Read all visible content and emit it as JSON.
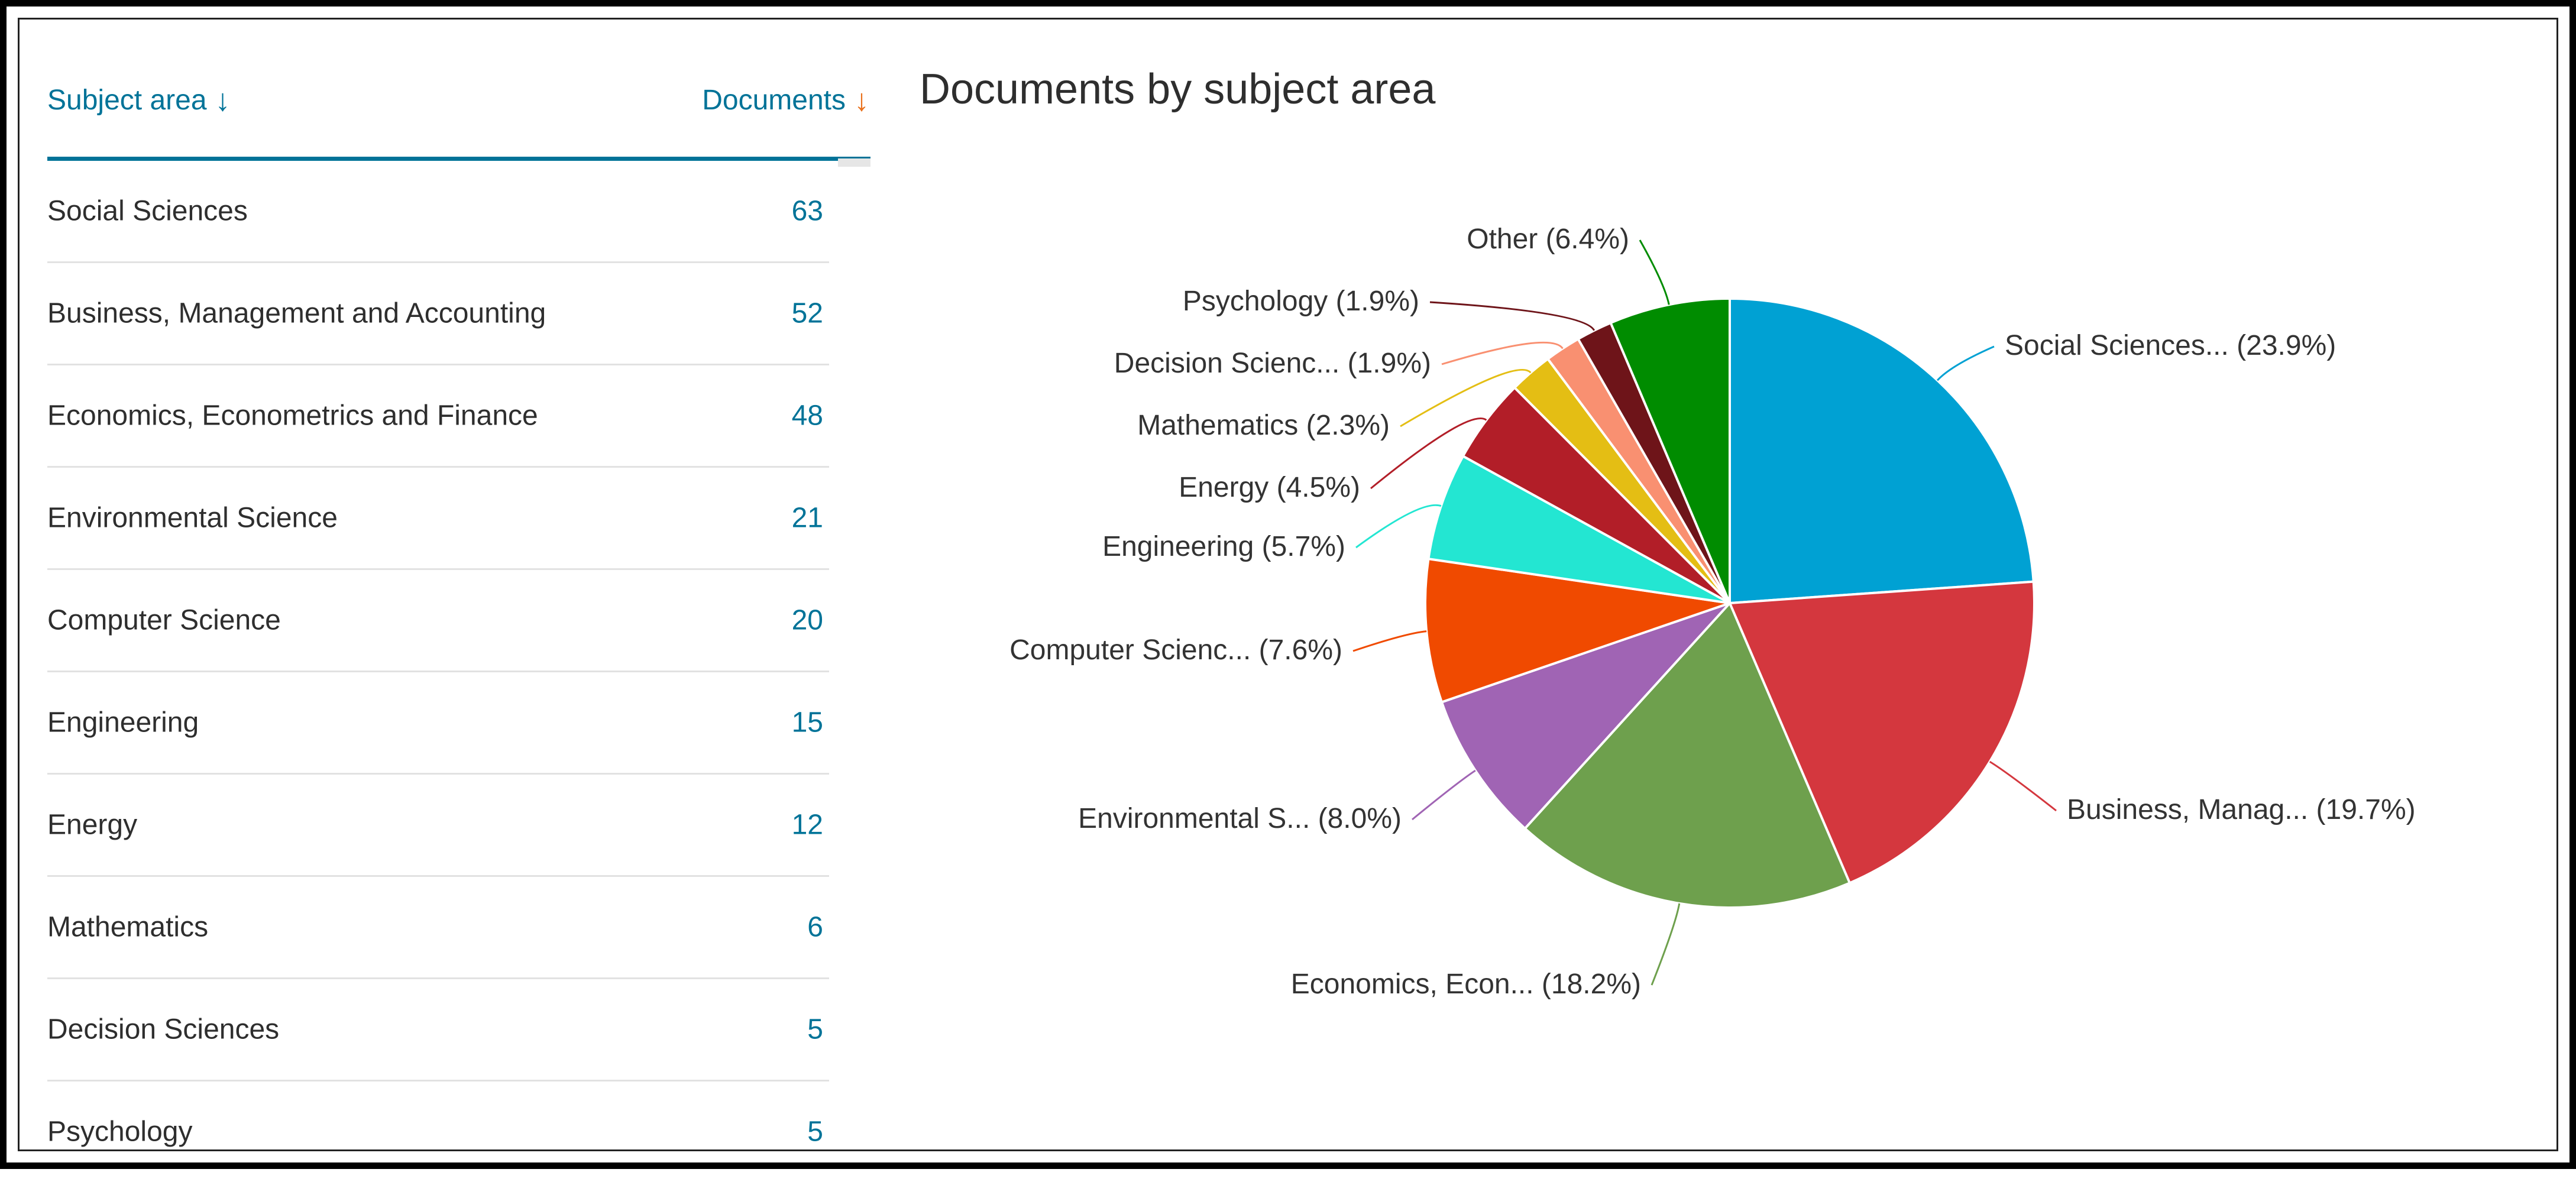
{
  "table": {
    "header": {
      "subject_label": "Subject area",
      "documents_label": "Documents",
      "sort_icon": "arrow-down-icon"
    },
    "rows": [
      {
        "name": "Social Sciences",
        "count": "63"
      },
      {
        "name": "Business, Management and Accounting",
        "count": "52"
      },
      {
        "name": "Economics, Econometrics and Finance",
        "count": "48"
      },
      {
        "name": "Environmental Science",
        "count": "21"
      },
      {
        "name": "Computer Science",
        "count": "20"
      },
      {
        "name": "Engineering",
        "count": "15"
      },
      {
        "name": "Energy",
        "count": "12"
      },
      {
        "name": "Mathematics",
        "count": "6"
      },
      {
        "name": "Decision Sciences",
        "count": "5"
      },
      {
        "name": "Psychology",
        "count": "5"
      }
    ],
    "accent_color": "#007398",
    "sort_accent_color": "#e9711c"
  },
  "chart_data": {
    "type": "pie",
    "title": "Documents by subject area",
    "start_angle_deg": 0,
    "direction": "clockwise",
    "slices": [
      {
        "label": "Social Sciences...",
        "percent": 23.9,
        "display": "Social Sciences... (23.9%)",
        "color": "#00a1d3"
      },
      {
        "label": "Business, Manag...",
        "percent": 19.7,
        "display": "Business, Manag... (19.7%)",
        "color": "#d4373e"
      },
      {
        "label": "Economics, Econ...",
        "percent": 18.2,
        "display": "Economics, Econ... (18.2%)",
        "color": "#6ea04d"
      },
      {
        "label": "Environmental S...",
        "percent": 8.0,
        "display": "Environmental S... (8.0%)",
        "color": "#a064b4"
      },
      {
        "label": "Computer Scienc...",
        "percent": 7.6,
        "display": "Computer Scienc... (7.6%)",
        "color": "#f04a00"
      },
      {
        "label": "Engineering",
        "percent": 5.7,
        "display": "Engineering (5.7%)",
        "color": "#23e6d2"
      },
      {
        "label": "Energy",
        "percent": 4.5,
        "display": "Energy (4.5%)",
        "color": "#b21e28"
      },
      {
        "label": "Mathematics",
        "percent": 2.3,
        "display": "Mathematics (2.3%)",
        "color": "#e4be14"
      },
      {
        "label": "Decision Scienc...",
        "percent": 1.9,
        "display": "Decision Scienc... (1.9%)",
        "color": "#f99071"
      },
      {
        "label": "Psychology",
        "percent": 1.9,
        "display": "Psychology (1.9%)",
        "color": "#6e1419"
      },
      {
        "label": "Other",
        "percent": 6.4,
        "display": "Other (6.4%)",
        "color": "#008c00"
      }
    ]
  }
}
